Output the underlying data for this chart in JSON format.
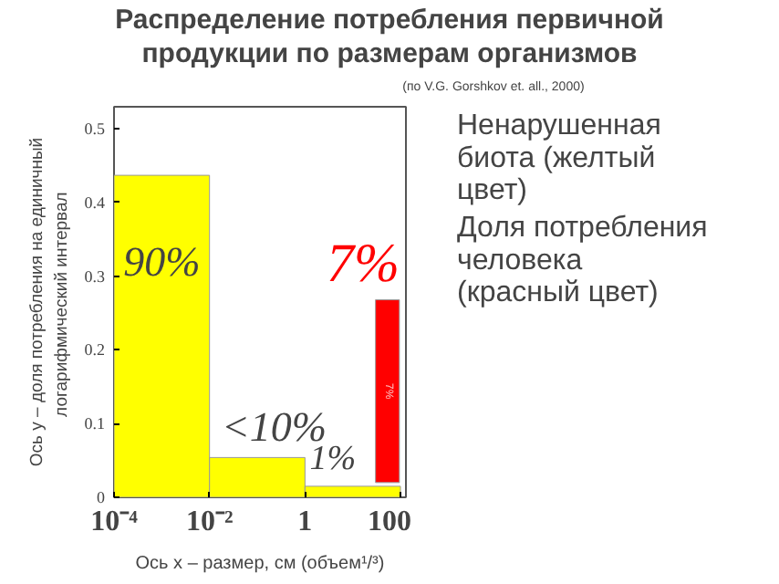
{
  "chart_data": {
    "type": "histogram",
    "title": "Распределение потребления первичной\nпродукции по размерам организмов",
    "subtitle": "(по V.G. Gorshkov et. all., 2000)",
    "xlabel": "Ось x – размер, см (объем¹/³)",
    "ylabel": "Ось y – доля потребления на единичный\nлогарифмический  интервал",
    "log": "x",
    "grid": false,
    "xlim": [
      0.0001,
      130
    ],
    "ylim": [
      0,
      0.53
    ],
    "xticks": [
      {
        "value": 0.0001,
        "label": "10⁻⁴"
      },
      {
        "value": 0.01,
        "label": "10⁻²"
      },
      1,
      100
    ],
    "yticks": [
      0,
      0.1,
      0.2,
      0.3,
      0.4,
      0.5
    ],
    "color": "#ffff00",
    "bins": [
      0.0001,
      0.01,
      1,
      100
    ],
    "values": [
      0.437,
      0.054,
      0.015
    ],
    "series": [
      {
        "type": "histogram",
        "color": "#ff0000",
        "bins": [
          30,
          95
        ],
        "base": [
          0.02
        ],
        "values": [
          0.248
        ]
      }
    ],
    "annotations": [
      "90%",
      "<10%",
      "1%",
      "7%",
      "7%",
      "Ненарушенная\n   биота (желтый\n   цвет)",
      "Доля потребления\n   человека\n   (красный цвет)"
    ]
  }
}
